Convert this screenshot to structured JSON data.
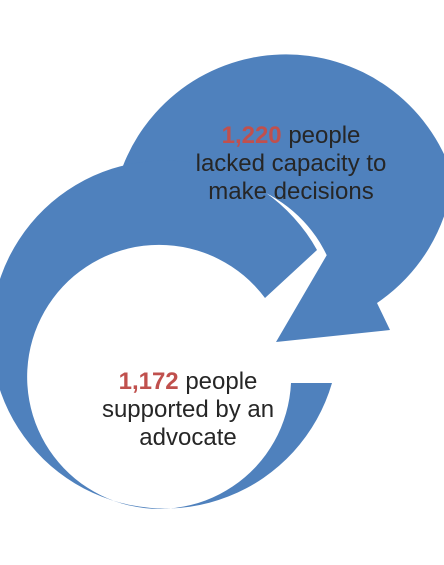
{
  "colors": {
    "arc": "#4f81bd",
    "number": "#c0504d",
    "text": "#262626"
  },
  "top": {
    "number": "1,220",
    "line1_rest": " people",
    "line2": "lacked capacity to",
    "line3": "make decisions"
  },
  "bottom": {
    "number": "1,172",
    "line1_rest": " people",
    "line2": "supported by an",
    "line3": "advocate"
  }
}
